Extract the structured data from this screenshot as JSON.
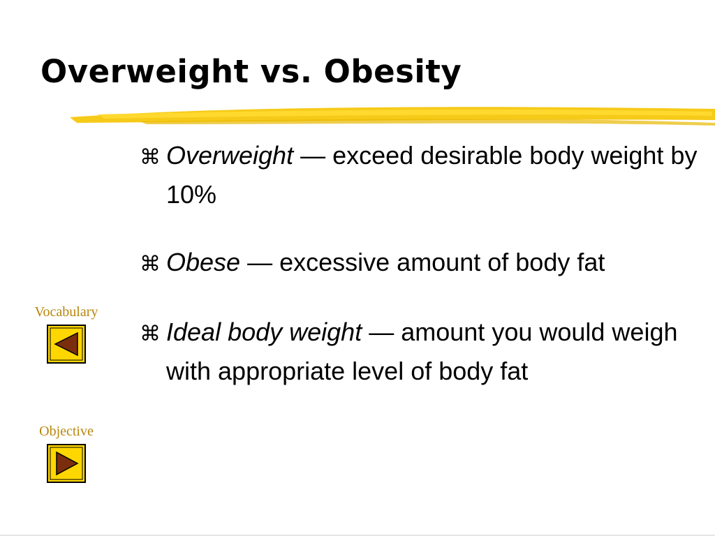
{
  "title": "Overweight vs. Obesity",
  "bullet_symbol": "⌘",
  "bullets": [
    {
      "term": "Overweight",
      "dash": "—",
      "definition": "exceed desirable body weight by 10%"
    },
    {
      "term": "Obese",
      "dash": "—",
      "definition": "excessive amount of body fat"
    },
    {
      "term": "Ideal body weight",
      "dash": "—",
      "definition": "amount you would weigh with appropriate level of body fat"
    }
  ],
  "nav": [
    {
      "label": "Vocabulary"
    },
    {
      "label": "Objective"
    }
  ]
}
